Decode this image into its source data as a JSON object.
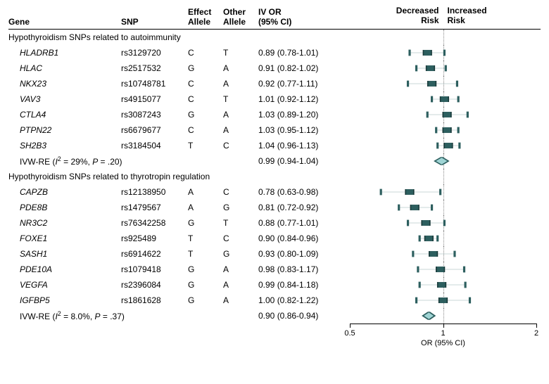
{
  "columns": {
    "gene": "Gene",
    "snp": "SNP",
    "effect_allele": "Effect\nAllele",
    "other_allele": "Other\nAllele",
    "iv_or": "IV OR\n(95% CI)"
  },
  "plot_header": {
    "decreased": "Decreased\nRisk",
    "increased": "Increased\nRisk"
  },
  "axis": {
    "title": "OR (95% CI)",
    "ticks": [
      0.5,
      1,
      2
    ],
    "min": 0.5,
    "max": 2.0
  },
  "colors": {
    "marker_fill": "#2d5f5f",
    "marker_stroke": "#1a3a3a",
    "diamond_fill": "#9fd4d4",
    "diamond_stroke": "#2d5f5f",
    "ci_line": "#2d5f5f",
    "vline": "#888888"
  },
  "groups": [
    {
      "title": "Hypothyroidism SNPs related to autoimmunity",
      "rows": [
        {
          "gene": "HLADRB1",
          "snp": "rs3129720",
          "ea": "C",
          "oa": "T",
          "or": 0.89,
          "lo": 0.78,
          "hi": 1.01,
          "disp": "0.89 (0.78-1.01)"
        },
        {
          "gene": "HLAC",
          "snp": "rs2517532",
          "ea": "G",
          "oa": "A",
          "or": 0.91,
          "lo": 0.82,
          "hi": 1.02,
          "disp": "0.91 (0.82-1.02)"
        },
        {
          "gene": "NKX23",
          "snp": "rs10748781",
          "ea": "C",
          "oa": "A",
          "or": 0.92,
          "lo": 0.77,
          "hi": 1.11,
          "disp": "0.92 (0.77-1.11)"
        },
        {
          "gene": "VAV3",
          "snp": "rs4915077",
          "ea": "C",
          "oa": "T",
          "or": 1.01,
          "lo": 0.92,
          "hi": 1.12,
          "disp": "1.01 (0.92-1.12)"
        },
        {
          "gene": "CTLA4",
          "snp": "rs3087243",
          "ea": "G",
          "oa": "A",
          "or": 1.03,
          "lo": 0.89,
          "hi": 1.2,
          "disp": "1.03 (0.89-1.20)"
        },
        {
          "gene": "PTPN22",
          "snp": "rs6679677",
          "ea": "C",
          "oa": "A",
          "or": 1.03,
          "lo": 0.95,
          "hi": 1.12,
          "disp": "1.03 (0.95-1.12)"
        },
        {
          "gene": "SH2B3",
          "snp": "rs3184504",
          "ea": "T",
          "oa": "C",
          "or": 1.04,
          "lo": 0.96,
          "hi": 1.13,
          "disp": "1.04 (0.96-1.13)"
        }
      ],
      "summary": {
        "label_prefix": "IVW-RE (",
        "i2": "I",
        "i2sup": "2",
        "i2val": " = 29%, ",
        "pital": "P",
        "pval": " = .20)",
        "or": 0.99,
        "lo": 0.94,
        "hi": 1.04,
        "disp": "0.99 (0.94-1.04)"
      }
    },
    {
      "title": "Hypothyroidism SNPs related to thyrotropin regulation",
      "rows": [
        {
          "gene": "CAPZB",
          "snp": "rs12138950",
          "ea": "A",
          "oa": "C",
          "or": 0.78,
          "lo": 0.63,
          "hi": 0.98,
          "disp": "0.78 (0.63-0.98)"
        },
        {
          "gene": "PDE8B",
          "snp": "rs1479567",
          "ea": "A",
          "oa": "G",
          "or": 0.81,
          "lo": 0.72,
          "hi": 0.92,
          "disp": "0.81 (0.72-0.92)"
        },
        {
          "gene": "NR3C2",
          "snp": "rs76342258",
          "ea": "G",
          "oa": "T",
          "or": 0.88,
          "lo": 0.77,
          "hi": 1.01,
          "disp": "0.88 (0.77-1.01)"
        },
        {
          "gene": "FOXE1",
          "snp": "rs925489",
          "ea": "T",
          "oa": "C",
          "or": 0.9,
          "lo": 0.84,
          "hi": 0.96,
          "disp": "0.90 (0.84-0.96)"
        },
        {
          "gene": "SASH1",
          "snp": "rs6914622",
          "ea": "T",
          "oa": "G",
          "or": 0.93,
          "lo": 0.8,
          "hi": 1.09,
          "disp": "0.93 (0.80-1.09)"
        },
        {
          "gene": "PDE10A",
          "snp": "rs1079418",
          "ea": "G",
          "oa": "A",
          "or": 0.98,
          "lo": 0.83,
          "hi": 1.17,
          "disp": "0.98 (0.83-1.17)"
        },
        {
          "gene": "VEGFA",
          "snp": "rs2396084",
          "ea": "G",
          "oa": "A",
          "or": 0.99,
          "lo": 0.84,
          "hi": 1.18,
          "disp": "0.99 (0.84-1.18)"
        },
        {
          "gene": "IGFBP5",
          "snp": "rs1861628",
          "ea": "G",
          "oa": "A",
          "or": 1.0,
          "lo": 0.82,
          "hi": 1.22,
          "disp": "1.00 (0.82-1.22)"
        }
      ],
      "summary": {
        "label_prefix": "IVW-RE (",
        "i2": "I",
        "i2sup": "2",
        "i2val": " = 8.0%, ",
        "pital": "P",
        "pval": " = .37)",
        "or": 0.9,
        "lo": 0.86,
        "hi": 0.94,
        "disp": "0.90 (0.86-0.94)"
      }
    }
  ]
}
